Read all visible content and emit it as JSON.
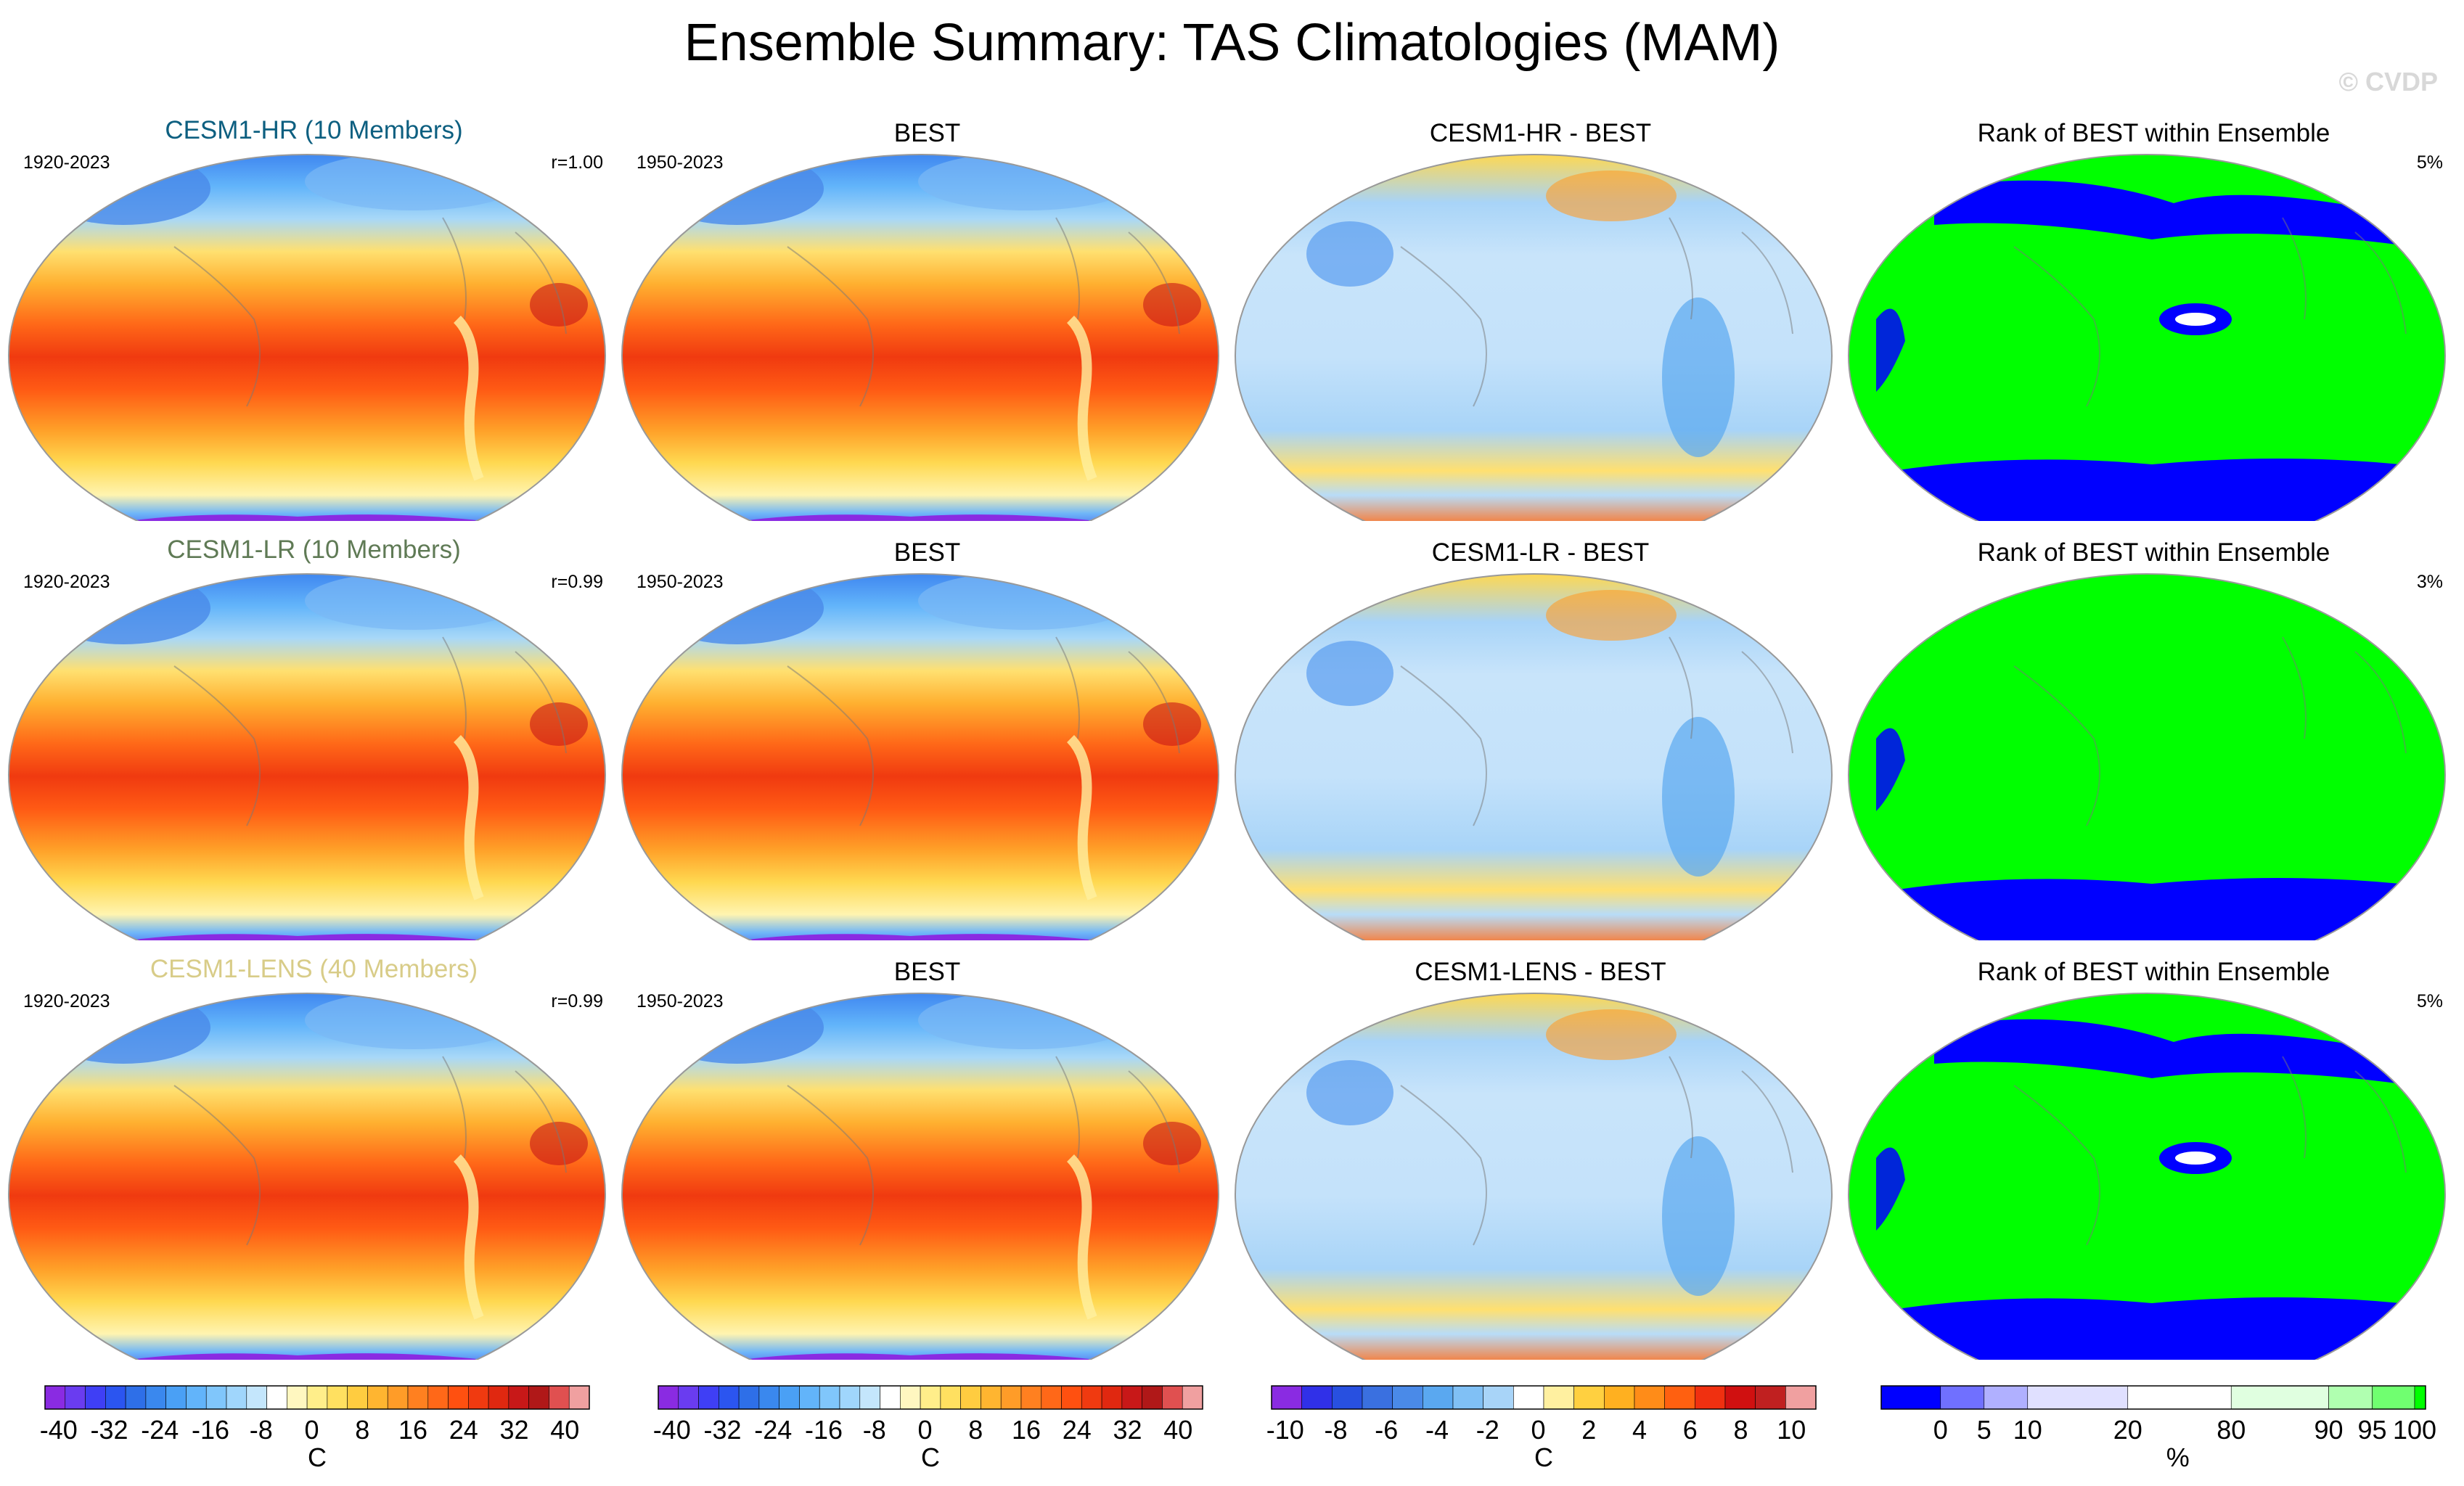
{
  "title": "Ensemble Summary: TAS Climatologies (MAM)",
  "copyright": "© CVDP",
  "rows": [
    {
      "model_title": "CESM1-HR (10 Members)",
      "model_color": "#0d5f80",
      "model_years": "1920-2023",
      "model_r": "r=1.00",
      "obs_title": "BEST",
      "obs_years": "1950-2023",
      "diff_title": "CESM1-HR - BEST",
      "rank_title": "Rank of BEST within Ensemble",
      "rank_pct": "5%"
    },
    {
      "model_title": "CESM1-LR (10 Members)",
      "model_color": "#5f7a55",
      "model_years": "1920-2023",
      "model_r": "r=0.99",
      "obs_title": "BEST",
      "obs_years": "1950-2023",
      "diff_title": "CESM1-LR - BEST",
      "rank_title": "Rank of BEST within Ensemble",
      "rank_pct": "3%"
    },
    {
      "model_title": "CESM1-LENS (40 Members)",
      "model_color": "#d8cc88",
      "model_years": "1920-2023",
      "model_r": "r=0.99",
      "obs_title": "BEST",
      "obs_years": "1950-2023",
      "diff_title": "CESM1-LENS - BEST",
      "rank_title": "Rank of BEST within Ensemble",
      "rank_pct": "5%"
    }
  ],
  "colorbars": [
    {
      "unit": "C",
      "ticks": [
        "-40",
        "-32",
        "-24",
        "-16",
        "-8",
        "0",
        "8",
        "16",
        "24",
        "32",
        "40"
      ],
      "colors": [
        "#8a2be2",
        "#6a3cf0",
        "#3f3ff5",
        "#2b55f0",
        "#2e6fe8",
        "#3a88ee",
        "#4aa0f5",
        "#62b4fa",
        "#80c6fb",
        "#a0d6fc",
        "#c4e6fc",
        "#ffffff",
        "#fff7c0",
        "#ffee8a",
        "#ffe060",
        "#ffcc40",
        "#ffb530",
        "#ff9c28",
        "#ff8020",
        "#ff6818",
        "#ff5010",
        "#f03a10",
        "#e02810",
        "#c81818",
        "#b01818",
        "#e05050",
        "#f0a0a0"
      ]
    },
    {
      "unit": "C",
      "ticks": [
        "-40",
        "-32",
        "-24",
        "-16",
        "-8",
        "0",
        "8",
        "16",
        "24",
        "32",
        "40"
      ],
      "colors": [
        "#8a2be2",
        "#6a3cf0",
        "#3f3ff5",
        "#2b55f0",
        "#2e6fe8",
        "#3a88ee",
        "#4aa0f5",
        "#62b4fa",
        "#80c6fb",
        "#a0d6fc",
        "#c4e6fc",
        "#ffffff",
        "#fff7c0",
        "#ffee8a",
        "#ffe060",
        "#ffcc40",
        "#ffb530",
        "#ff9c28",
        "#ff8020",
        "#ff6818",
        "#ff5010",
        "#f03a10",
        "#e02810",
        "#c81818",
        "#b01818",
        "#e05050",
        "#f0a0a0"
      ]
    },
    {
      "unit": "C",
      "ticks": [
        "-10",
        "-8",
        "-6",
        "-4",
        "-2",
        "0",
        "2",
        "4",
        "6",
        "8",
        "10"
      ],
      "colors": [
        "#8a2be2",
        "#3030e8",
        "#2850e0",
        "#3a70e0",
        "#4a8ae8",
        "#5aa8f0",
        "#80c0f5",
        "#a8d4f8",
        "#ffffff",
        "#fff0a0",
        "#ffd040",
        "#ffb020",
        "#ff8c18",
        "#ff6010",
        "#f03010",
        "#d01010",
        "#c02020",
        "#f0a0a0"
      ]
    },
    {
      "unit": "%",
      "ticks": [
        "0",
        "5",
        "10",
        "20",
        "80",
        "90",
        "95",
        "100"
      ],
      "tick_pos": [
        0.109,
        0.189,
        0.269,
        0.453,
        0.643,
        0.822,
        0.902,
        0.98
      ],
      "colors": [
        "#0000ff",
        "#7070ff",
        "#b0b0ff",
        "#e0e0ff",
        "#ffffff",
        "#e0ffe0",
        "#b0ffb0",
        "#70ff70",
        "#00ff00"
      ],
      "widths": [
        0.109,
        0.08,
        0.08,
        0.184,
        0.19,
        0.179,
        0.08,
        0.078,
        0.02
      ]
    }
  ]
}
